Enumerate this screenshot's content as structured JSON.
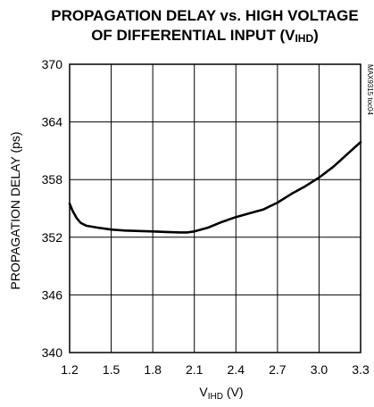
{
  "chart_data": {
    "type": "line",
    "title_line1": "PROPAGATION DELAY vs. HIGH VOLTAGE",
    "title_line2_prefix": "OF DIFFERENTIAL INPUT (V",
    "title_line2_sub": "IHD",
    "title_line2_suffix": ")",
    "ylabel": "PROPAGATION DELAY (ps)",
    "xlabel_prefix": "V",
    "xlabel_sub": "IHD",
    "xlabel_suffix": " (V)",
    "side_label": "MAX9315 toc04",
    "xlim": [
      1.2,
      3.3
    ],
    "ylim": [
      340,
      370
    ],
    "xticks": [
      "1.2",
      "1.5",
      "1.8",
      "2.1",
      "2.4",
      "2.7",
      "3.0",
      "3.3"
    ],
    "yticks": [
      "370",
      "364",
      "358",
      "352",
      "346",
      "340"
    ],
    "grid": true,
    "series": [
      {
        "x": [
          1.2,
          1.22,
          1.25,
          1.28,
          1.32,
          1.4,
          1.5,
          1.6,
          1.7,
          1.8,
          1.9,
          2.0,
          2.05,
          2.1,
          2.2,
          2.3,
          2.4,
          2.5,
          2.6,
          2.7,
          2.8,
          2.9,
          3.0,
          3.1,
          3.2,
          3.3
        ],
        "y": [
          355.5,
          354.8,
          354.0,
          353.5,
          353.2,
          353.0,
          352.8,
          352.7,
          352.65,
          352.6,
          352.55,
          352.5,
          352.5,
          352.6,
          353.0,
          353.6,
          354.1,
          354.5,
          354.9,
          355.6,
          356.5,
          357.3,
          358.2,
          359.3,
          360.6,
          361.9
        ]
      }
    ],
    "line_color": "#000000"
  }
}
